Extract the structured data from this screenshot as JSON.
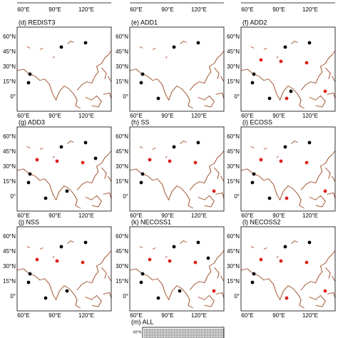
{
  "lon_ticks": [
    "60°E",
    "90°E",
    "120°E"
  ],
  "lat_ticks": [
    "60°N",
    "45°N",
    "30°N",
    "15°N",
    "0°"
  ],
  "panels": [
    {
      "label": "(d) REDIST3"
    },
    {
      "label": "(e) ADD1"
    },
    {
      "label": "(f) ADD2"
    },
    {
      "label": "(g) ADD3"
    },
    {
      "label": "(h) SS"
    },
    {
      "label": "(i) ECOSS"
    },
    {
      "label": "(j) NSS"
    },
    {
      "label": "(k) NECOSS1"
    },
    {
      "label": "(l) NECOSS2"
    }
  ],
  "bottom_panel": {
    "label": "(m) ALL",
    "lat_tick": "60°N"
  }
}
